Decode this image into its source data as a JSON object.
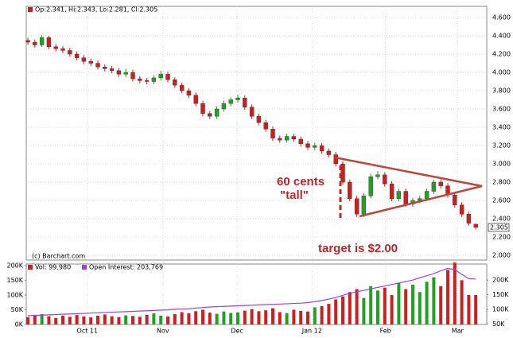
{
  "chart_data": [
    {
      "type": "candlestick",
      "legend_text": "Op:2.341, Hi:2.343, Lo:2.281, Cl:2.305",
      "credit": "(c) Barchart.com",
      "annotations": [
        "60 cents",
        "\"tall\"",
        "target is $2.00"
      ],
      "up_color": "#22a022",
      "down_color": "#cc2020",
      "open": [
        4.35,
        4.33,
        4.3,
        4.38,
        4.28,
        4.26,
        4.24,
        4.2,
        4.16,
        4.12,
        4.1,
        4.06,
        4.04,
        4.02,
        3.98,
        4.0,
        3.93,
        3.91,
        3.9,
        3.94,
        3.98,
        3.92,
        3.86,
        3.8,
        3.75,
        3.66,
        3.55,
        3.52,
        3.6,
        3.66,
        3.7,
        3.72,
        3.62,
        3.52,
        3.45,
        3.38,
        3.28,
        3.26,
        3.3,
        3.27,
        3.22,
        3.18,
        3.2,
        3.14,
        3.1,
        3.0,
        2.8,
        2.62,
        2.45,
        2.65,
        2.86,
        2.88,
        2.78,
        2.62,
        2.7,
        2.56,
        2.6,
        2.62,
        2.7,
        2.8,
        2.76,
        2.66,
        2.55,
        2.45,
        2.341
      ],
      "high": [
        4.38,
        4.36,
        4.41,
        4.4,
        4.31,
        4.29,
        4.27,
        4.23,
        4.19,
        4.15,
        4.13,
        4.09,
        4.07,
        4.05,
        4.04,
        4.03,
        3.96,
        3.94,
        3.97,
        4.02,
        4.01,
        3.95,
        3.89,
        3.83,
        3.78,
        3.69,
        3.58,
        3.63,
        3.69,
        3.73,
        3.76,
        3.75,
        3.65,
        3.55,
        3.48,
        3.41,
        3.31,
        3.33,
        3.33,
        3.3,
        3.25,
        3.23,
        3.23,
        3.17,
        3.13,
        3.03,
        2.83,
        2.65,
        2.68,
        2.89,
        2.92,
        2.91,
        2.81,
        2.73,
        2.73,
        2.63,
        2.65,
        2.73,
        2.83,
        2.83,
        2.79,
        2.69,
        2.58,
        2.48,
        2.343
      ],
      "low": [
        4.3,
        4.27,
        4.28,
        4.25,
        4.23,
        4.21,
        4.17,
        4.13,
        4.09,
        4.07,
        4.03,
        4.01,
        3.99,
        3.95,
        3.95,
        3.9,
        3.88,
        3.87,
        3.87,
        3.91,
        3.89,
        3.83,
        3.77,
        3.72,
        3.63,
        3.52,
        3.49,
        3.49,
        3.57,
        3.63,
        3.67,
        3.59,
        3.49,
        3.42,
        3.35,
        3.25,
        3.23,
        3.23,
        3.24,
        3.19,
        3.15,
        3.15,
        3.11,
        3.07,
        2.97,
        2.77,
        2.59,
        2.42,
        2.42,
        2.62,
        2.83,
        2.75,
        2.59,
        2.59,
        2.53,
        2.53,
        2.57,
        2.59,
        2.67,
        2.73,
        2.63,
        2.52,
        2.42,
        2.32,
        2.281
      ],
      "close": [
        4.33,
        4.3,
        4.38,
        4.28,
        4.26,
        4.24,
        4.2,
        4.16,
        4.12,
        4.1,
        4.06,
        4.04,
        4.02,
        3.98,
        4.0,
        3.93,
        3.91,
        3.9,
        3.94,
        3.98,
        3.92,
        3.86,
        3.8,
        3.75,
        3.66,
        3.55,
        3.52,
        3.6,
        3.66,
        3.7,
        3.72,
        3.62,
        3.52,
        3.45,
        3.38,
        3.28,
        3.26,
        3.3,
        3.27,
        3.22,
        3.18,
        3.2,
        3.14,
        3.1,
        3.0,
        2.8,
        2.62,
        2.45,
        2.65,
        2.86,
        2.88,
        2.78,
        2.62,
        2.7,
        2.56,
        2.6,
        2.62,
        2.7,
        2.8,
        2.76,
        2.66,
        2.55,
        2.45,
        2.35,
        2.305
      ],
      "xlim": [
        -0.23,
        65.57
      ],
      "xticks": [
        {
          "value": 8.5,
          "label": "Oct 11"
        },
        {
          "value": 19.3,
          "label": "Nov"
        },
        {
          "value": 29.9,
          "label": "Dec"
        },
        {
          "value": 40.6,
          "label": "Jan 12"
        },
        {
          "value": 51.1,
          "label": "Feb"
        },
        {
          "value": 61.4,
          "label": "Mar"
        }
      ],
      "ylim": [
        1.948,
        4.722
      ],
      "yticks": [
        {
          "value": 2,
          "label": "2.000"
        },
        {
          "value": 2.2,
          "label": "2.200"
        },
        {
          "value": 2.4,
          "label": "2.400"
        },
        {
          "value": 2.6,
          "label": "2.600"
        },
        {
          "value": 2.8,
          "label": "2.800"
        },
        {
          "value": 3,
          "label": "3.000"
        },
        {
          "value": 3.2,
          "label": "3.200"
        },
        {
          "value": 3.4,
          "label": "3.400"
        },
        {
          "value": 3.6,
          "label": "3.600"
        },
        {
          "value": 3.8,
          "label": "3.800"
        },
        {
          "value": 4,
          "label": "4.000"
        },
        {
          "value": 4.2,
          "label": "4.200"
        },
        {
          "value": 4.4,
          "label": "4.400"
        },
        {
          "value": 4.6,
          "label": "4.600"
        }
      ],
      "grid": true
    },
    {
      "type": "volume",
      "series": [
        {
          "name": "Vol: 99,980",
          "color": "#cc2020",
          "up_color": "#22a022",
          "values": [
            25000,
            30000,
            35000,
            28000,
            22000,
            30000,
            26000,
            32000,
            27000,
            24000,
            30000,
            34000,
            28000,
            25000,
            31000,
            29000,
            26000,
            33000,
            38000,
            30000,
            27000,
            35000,
            42000,
            38000,
            45000,
            50000,
            40000,
            36000,
            44000,
            39000,
            41000,
            47000,
            52000,
            45000,
            48000,
            55000,
            42000,
            38000,
            50000,
            46000,
            44000,
            58000,
            62000,
            70000,
            85000,
            95000,
            110000,
            120000,
            90000,
            130000,
            115000,
            125000,
            100000,
            140000,
            120000,
            135000,
            110000,
            145000,
            160000,
            130000,
            185000,
            210000,
            150000,
            100000,
            99980
          ]
        },
        {
          "name": "Open Interest: 203,769",
          "color": "#a040e0",
          "axis": "y2",
          "values": [
            78000,
            79000,
            80000,
            81000,
            82000,
            83000,
            84000,
            85000,
            86000,
            87000,
            88000,
            89000,
            90000,
            91000,
            92000,
            93000,
            94000,
            95000,
            96000,
            97000,
            98000,
            100000,
            101000,
            102000,
            104000,
            106000,
            108000,
            109000,
            110000,
            111000,
            112000,
            113000,
            114000,
            115000,
            116000,
            117000,
            118000,
            119000,
            120000,
            121000,
            123000,
            126000,
            130000,
            135000,
            140000,
            148000,
            155000,
            160000,
            165000,
            170000,
            175000,
            180000,
            185000,
            190000,
            195000,
            200000,
            208000,
            215000,
            222000,
            232000,
            240000,
            236000,
            220000,
            205000,
            203769
          ]
        }
      ],
      "ylim": [
        0,
        205000
      ],
      "yticks": [
        {
          "value": 0,
          "label": "0K"
        },
        {
          "value": 50000,
          "label": "50K"
        },
        {
          "value": 100000,
          "label": "100K"
        },
        {
          "value": 150000,
          "label": "150K"
        },
        {
          "value": 200000,
          "label": "200K"
        }
      ],
      "y2lim": [
        48000,
        255000
      ],
      "y2ticks": [
        {
          "value": 50000,
          "label": "50K"
        },
        {
          "value": 100000,
          "label": "100K"
        },
        {
          "value": 150000,
          "label": "150K"
        },
        {
          "value": 200000,
          "label": "200K"
        }
      ]
    }
  ]
}
